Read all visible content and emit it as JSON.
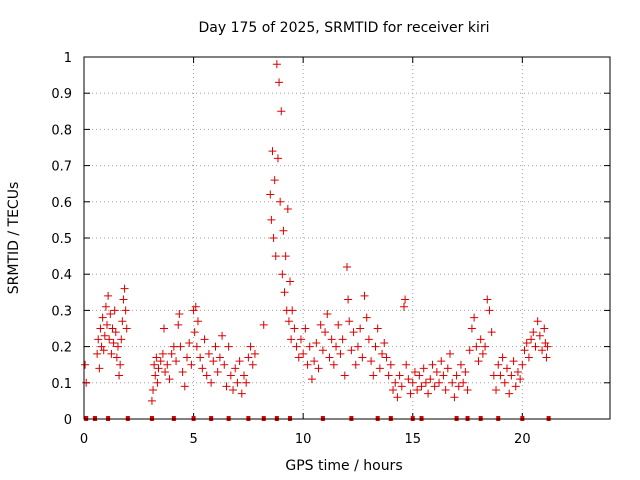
{
  "chart_data": {
    "type": "scatter",
    "title": "Day 175 of 2025, SRMTID for receiver kiri",
    "xlabel": "GPS time / hours",
    "ylabel": "SRMTID / TECUs",
    "xlim": [
      0,
      24
    ],
    "ylim": [
      0,
      1
    ],
    "x_ticks": [
      0,
      5,
      10,
      15,
      20
    ],
    "y_ticks": [
      0,
      0.1,
      0.2,
      0.3,
      0.4,
      0.5,
      0.6,
      0.7,
      0.8,
      0.9,
      1
    ],
    "x_tick_labels": [
      "0",
      "5",
      "10",
      "15",
      "20"
    ],
    "y_tick_labels": [
      "0",
      "0.1",
      "0.2",
      "0.3",
      "0.4",
      "0.5",
      "0.6",
      "0.7",
      "0.8",
      "0.9",
      "1"
    ],
    "grid": true,
    "marker": "+",
    "color": "#dd0000",
    "series": [
      {
        "name": "SRMTID",
        "points": [
          [
            0.05,
            0.15
          ],
          [
            0.1,
            0.1
          ],
          [
            0.6,
            0.18
          ],
          [
            0.65,
            0.22
          ],
          [
            0.7,
            0.14
          ],
          [
            0.75,
            0.25
          ],
          [
            0.8,
            0.2
          ],
          [
            0.85,
            0.28
          ],
          [
            0.9,
            0.19
          ],
          [
            0.95,
            0.23
          ],
          [
            1.0,
            0.31
          ],
          [
            1.05,
            0.26
          ],
          [
            1.1,
            0.34
          ],
          [
            1.15,
            0.22
          ],
          [
            1.2,
            0.29
          ],
          [
            1.25,
            0.18
          ],
          [
            1.3,
            0.25
          ],
          [
            1.35,
            0.21
          ],
          [
            1.4,
            0.3
          ],
          [
            1.45,
            0.24
          ],
          [
            1.5,
            0.17
          ],
          [
            1.55,
            0.2
          ],
          [
            1.6,
            0.12
          ],
          [
            1.65,
            0.15
          ],
          [
            1.7,
            0.22
          ],
          [
            1.75,
            0.27
          ],
          [
            1.8,
            0.33
          ],
          [
            1.85,
            0.36
          ],
          [
            1.9,
            0.3
          ],
          [
            1.95,
            0.25
          ],
          [
            3.1,
            0.05
          ],
          [
            3.15,
            0.08
          ],
          [
            3.2,
            0.15
          ],
          [
            3.25,
            0.12
          ],
          [
            3.3,
            0.17
          ],
          [
            3.35,
            0.1
          ],
          [
            3.4,
            0.14
          ],
          [
            3.5,
            0.16
          ],
          [
            3.6,
            0.18
          ],
          [
            3.65,
            0.25
          ],
          [
            3.7,
            0.13
          ],
          [
            3.8,
            0.15
          ],
          [
            3.9,
            0.11
          ],
          [
            4.0,
            0.18
          ],
          [
            4.1,
            0.2
          ],
          [
            4.2,
            0.16
          ],
          [
            4.3,
            0.26
          ],
          [
            4.35,
            0.29
          ],
          [
            4.4,
            0.2
          ],
          [
            4.5,
            0.13
          ],
          [
            4.6,
            0.09
          ],
          [
            4.7,
            0.17
          ],
          [
            4.8,
            0.21
          ],
          [
            4.9,
            0.15
          ],
          [
            5.0,
            0.3
          ],
          [
            5.05,
            0.24
          ],
          [
            5.1,
            0.31
          ],
          [
            5.15,
            0.2
          ],
          [
            5.2,
            0.27
          ],
          [
            5.3,
            0.17
          ],
          [
            5.4,
            0.14
          ],
          [
            5.5,
            0.22
          ],
          [
            5.6,
            0.12
          ],
          [
            5.7,
            0.18
          ],
          [
            5.8,
            0.1
          ],
          [
            5.9,
            0.16
          ],
          [
            6.0,
            0.2
          ],
          [
            6.1,
            0.13
          ],
          [
            6.2,
            0.17
          ],
          [
            6.3,
            0.23
          ],
          [
            6.4,
            0.15
          ],
          [
            6.5,
            0.09
          ],
          [
            6.6,
            0.2
          ],
          [
            6.7,
            0.12
          ],
          [
            6.8,
            0.08
          ],
          [
            6.9,
            0.14
          ],
          [
            7.0,
            0.1
          ],
          [
            7.1,
            0.16
          ],
          [
            7.2,
            0.07
          ],
          [
            7.3,
            0.12
          ],
          [
            7.4,
            0.1
          ],
          [
            7.5,
            0.17
          ],
          [
            7.6,
            0.2
          ],
          [
            7.7,
            0.15
          ],
          [
            7.8,
            0.18
          ],
          [
            8.2,
            0.26
          ],
          [
            8.5,
            0.62
          ],
          [
            8.55,
            0.55
          ],
          [
            8.6,
            0.74
          ],
          [
            8.65,
            0.5
          ],
          [
            8.7,
            0.66
          ],
          [
            8.75,
            0.45
          ],
          [
            8.8,
            0.98
          ],
          [
            8.85,
            0.72
          ],
          [
            8.9,
            0.93
          ],
          [
            8.95,
            0.6
          ],
          [
            9.0,
            0.85
          ],
          [
            9.05,
            0.4
          ],
          [
            9.1,
            0.52
          ],
          [
            9.15,
            0.35
          ],
          [
            9.2,
            0.45
          ],
          [
            9.25,
            0.3
          ],
          [
            9.3,
            0.58
          ],
          [
            9.35,
            0.27
          ],
          [
            9.4,
            0.38
          ],
          [
            9.45,
            0.22
          ],
          [
            9.5,
            0.3
          ],
          [
            9.6,
            0.25
          ],
          [
            9.7,
            0.2
          ],
          [
            9.8,
            0.17
          ],
          [
            9.9,
            0.22
          ],
          [
            10.0,
            0.18
          ],
          [
            10.1,
            0.25
          ],
          [
            10.2,
            0.15
          ],
          [
            10.3,
            0.2
          ],
          [
            10.4,
            0.11
          ],
          [
            10.5,
            0.16
          ],
          [
            10.6,
            0.21
          ],
          [
            10.7,
            0.14
          ],
          [
            10.8,
            0.26
          ],
          [
            10.9,
            0.19
          ],
          [
            11.0,
            0.24
          ],
          [
            11.1,
            0.29
          ],
          [
            11.2,
            0.17
          ],
          [
            11.3,
            0.22
          ],
          [
            11.4,
            0.15
          ],
          [
            11.5,
            0.2
          ],
          [
            11.6,
            0.26
          ],
          [
            11.7,
            0.18
          ],
          [
            11.8,
            0.22
          ],
          [
            11.9,
            0.12
          ],
          [
            12.0,
            0.42
          ],
          [
            12.05,
            0.33
          ],
          [
            12.1,
            0.27
          ],
          [
            12.2,
            0.19
          ],
          [
            12.3,
            0.24
          ],
          [
            12.4,
            0.15
          ],
          [
            12.5,
            0.2
          ],
          [
            12.6,
            0.25
          ],
          [
            12.7,
            0.17
          ],
          [
            12.8,
            0.34
          ],
          [
            12.9,
            0.28
          ],
          [
            13.0,
            0.22
          ],
          [
            13.1,
            0.16
          ],
          [
            13.2,
            0.12
          ],
          [
            13.3,
            0.2
          ],
          [
            13.4,
            0.25
          ],
          [
            13.5,
            0.14
          ],
          [
            13.6,
            0.18
          ],
          [
            13.7,
            0.21
          ],
          [
            13.8,
            0.17
          ],
          [
            13.9,
            0.12
          ],
          [
            14.0,
            0.15
          ],
          [
            14.1,
            0.08
          ],
          [
            14.2,
            0.1
          ],
          [
            14.3,
            0.06
          ],
          [
            14.4,
            0.12
          ],
          [
            14.5,
            0.09
          ],
          [
            14.6,
            0.31
          ],
          [
            14.65,
            0.33
          ],
          [
            14.7,
            0.15
          ],
          [
            14.8,
            0.11
          ],
          [
            14.9,
            0.07
          ],
          [
            15.0,
            0.1
          ],
          [
            15.1,
            0.13
          ],
          [
            15.2,
            0.08
          ],
          [
            15.3,
            0.12
          ],
          [
            15.4,
            0.09
          ],
          [
            15.5,
            0.14
          ],
          [
            15.6,
            0.1
          ],
          [
            15.7,
            0.07
          ],
          [
            15.8,
            0.11
          ],
          [
            15.9,
            0.15
          ],
          [
            16.0,
            0.09
          ],
          [
            16.1,
            0.13
          ],
          [
            16.2,
            0.1
          ],
          [
            16.3,
            0.16
          ],
          [
            16.4,
            0.12
          ],
          [
            16.5,
            0.08
          ],
          [
            16.6,
            0.14
          ],
          [
            16.7,
            0.18
          ],
          [
            16.8,
            0.1
          ],
          [
            16.9,
            0.06
          ],
          [
            17.0,
            0.12
          ],
          [
            17.1,
            0.09
          ],
          [
            17.2,
            0.15
          ],
          [
            17.3,
            0.1
          ],
          [
            17.4,
            0.13
          ],
          [
            17.5,
            0.08
          ],
          [
            17.6,
            0.19
          ],
          [
            17.7,
            0.25
          ],
          [
            17.8,
            0.28
          ],
          [
            17.9,
            0.2
          ],
          [
            18.0,
            0.16
          ],
          [
            18.1,
            0.22
          ],
          [
            18.2,
            0.18
          ],
          [
            18.3,
            0.2
          ],
          [
            18.4,
            0.33
          ],
          [
            18.5,
            0.3
          ],
          [
            18.6,
            0.24
          ],
          [
            18.7,
            0.12
          ],
          [
            18.8,
            0.08
          ],
          [
            18.9,
            0.15
          ],
          [
            19.0,
            0.12
          ],
          [
            19.1,
            0.17
          ],
          [
            19.2,
            0.1
          ],
          [
            19.3,
            0.14
          ],
          [
            19.4,
            0.07
          ],
          [
            19.5,
            0.12
          ],
          [
            19.6,
            0.16
          ],
          [
            19.7,
            0.09
          ],
          [
            19.8,
            0.13
          ],
          [
            19.9,
            0.11
          ],
          [
            20.0,
            0.15
          ],
          [
            20.1,
            0.19
          ],
          [
            20.2,
            0.21
          ],
          [
            20.3,
            0.17
          ],
          [
            20.4,
            0.22
          ],
          [
            20.5,
            0.24
          ],
          [
            20.6,
            0.2
          ],
          [
            20.7,
            0.27
          ],
          [
            20.8,
            0.23
          ],
          [
            20.9,
            0.19
          ],
          [
            21.0,
            0.25
          ],
          [
            21.05,
            0.21
          ],
          [
            21.1,
            0.17
          ],
          [
            21.15,
            0.2
          ]
        ]
      }
    ],
    "coverage_marks_x": [
      0.1,
      0.5,
      1.1,
      2.0,
      3.1,
      4.1,
      5.0,
      5.8,
      6.6,
      7.5,
      8.2,
      8.8,
      9.4,
      10.9,
      12.2,
      13.4,
      14.0,
      15.0,
      15.4,
      17.0,
      17.5,
      18.1,
      18.9,
      20.0,
      21.2
    ]
  }
}
